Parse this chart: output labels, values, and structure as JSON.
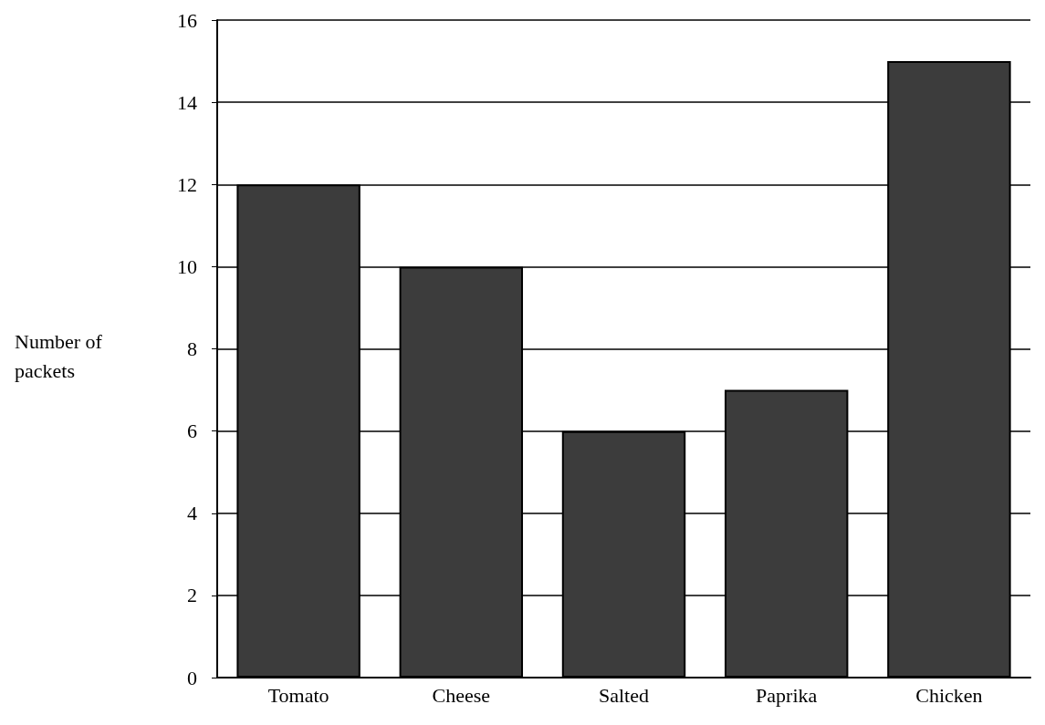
{
  "chart_data": {
    "type": "bar",
    "ylabel": "Number of packets",
    "categories": [
      "Tomato",
      "Cheese",
      "Salted",
      "Paprika",
      "Chicken"
    ],
    "values": [
      12,
      10,
      6,
      7,
      15
    ],
    "color": "#3c3c3c",
    "ylim": [
      0,
      16
    ],
    "yticks": [
      0,
      2,
      4,
      6,
      8,
      10,
      12,
      14,
      16
    ],
    "grid": "y"
  }
}
